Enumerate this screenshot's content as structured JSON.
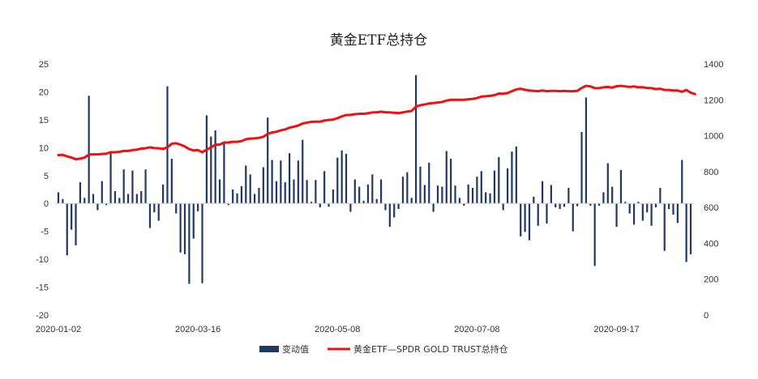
{
  "chart_data": {
    "type": "bar+line",
    "title": "黄金ETF总持仓",
    "x_tick_labels": [
      "2020-01-02",
      "2020-03-16",
      "2020-05-08",
      "2020-07-08",
      "2020-09-17"
    ],
    "y_left": {
      "min": -20,
      "max": 25,
      "ticks": [
        -20,
        -15,
        -10,
        -5,
        0,
        5,
        10,
        15,
        20,
        25
      ]
    },
    "y_right": {
      "min": 0,
      "max": 1400,
      "ticks": [
        0,
        200,
        400,
        600,
        800,
        1000,
        1200,
        1400
      ]
    },
    "grid": false,
    "legend_position": "bottom",
    "series": [
      {
        "name": "变动值",
        "type": "bar",
        "axis": "left",
        "color": "#1f3864",
        "values": [
          2.0,
          0.8,
          -9.3,
          -4.7,
          -7.5,
          3.8,
          1.0,
          19.3,
          1.7,
          -1.2,
          4.0,
          -0.3,
          9.4,
          2.2,
          1.0,
          6.1,
          1.7,
          5.9,
          1.7,
          2.2,
          6.1,
          -4.4,
          -1.6,
          -3.1,
          3.4,
          21.0,
          8.0,
          -1.8,
          -8.8,
          -9.1,
          -14.4,
          -6.3,
          -1.4,
          -14.3,
          15.8,
          12.0,
          13.1,
          4.3,
          10.7,
          -0.3,
          2.5,
          1.8,
          3.1,
          6.8,
          5.2,
          1.7,
          2.8,
          6.5,
          15.4,
          7.8,
          4.0,
          7.7,
          3.8,
          9.0,
          4.3,
          7.7,
          11.4,
          4.2,
          0.3,
          4.2,
          -0.7,
          5.8,
          -0.6,
          2.5,
          8.2,
          9.5,
          8.9,
          -1.5,
          4.3,
          3.0,
          0.5,
          3.4,
          5.2,
          0.8,
          4.3,
          -1.2,
          -4.2,
          -2.5,
          -1.0,
          4.8,
          5.6,
          1.0,
          23.0,
          6.6,
          3.3,
          7.3,
          -1.5,
          3.2,
          3.0,
          9.4,
          8.0,
          3.2,
          1.0,
          -0.4,
          3.4,
          2.8,
          4.8,
          5.8,
          2.0,
          1.8,
          5.9,
          8.3,
          -1.2,
          6.3,
          9.3,
          10.2,
          -5.9,
          -5.1,
          -6.6,
          1.2,
          -4.0,
          4.0,
          -3.6,
          3.3,
          -0.7,
          -1.0,
          -0.6,
          2.8,
          -5.0,
          -0.5,
          12.8,
          19.0,
          -0.4,
          -11.2,
          -0.4,
          2.0,
          7.2,
          3.0,
          -4.2,
          6.0,
          0.3,
          -1.8,
          -3.8,
          0.3,
          -3.1,
          -1.6,
          -4.0,
          -0.7,
          2.8,
          -8.5,
          -1.0,
          -2.0,
          -3.5,
          7.8,
          -10.5,
          -9.1
        ]
      },
      {
        "name": "黄金ETF—SPDR GOLD TRUST总持仓",
        "type": "line",
        "axis": "right",
        "color": "#ee1111",
        "values": [
          892,
          893,
          885,
          878,
          869,
          872,
          878,
          895,
          896,
          896,
          898,
          900,
          908,
          908,
          910,
          915,
          915,
          920,
          922,
          928,
          930,
          935,
          931,
          930,
          926,
          935,
          955,
          958,
          950,
          940,
          925,
          918,
          920,
          908,
          922,
          935,
          950,
          950,
          962,
          962,
          966,
          966,
          970,
          980,
          984,
          985,
          988,
          994,
          1010,
          1018,
          1022,
          1030,
          1035,
          1045,
          1050,
          1057,
          1068,
          1073,
          1077,
          1078,
          1078,
          1085,
          1088,
          1090,
          1098,
          1108,
          1115,
          1116,
          1120,
          1122,
          1122,
          1125,
          1130,
          1130,
          1134,
          1130,
          1130,
          1128,
          1126,
          1130,
          1135,
          1138,
          1162,
          1170,
          1174,
          1180,
          1182,
          1185,
          1188,
          1196,
          1200,
          1200,
          1200,
          1200,
          1203,
          1205,
          1210,
          1218,
          1220,
          1222,
          1226,
          1235,
          1234,
          1238,
          1248,
          1258,
          1262,
          1256,
          1252,
          1250,
          1248,
          1252,
          1248,
          1250,
          1250,
          1248,
          1250,
          1248,
          1248,
          1250,
          1266,
          1278,
          1275,
          1265,
          1265,
          1270,
          1272,
          1268,
          1276,
          1278,
          1275,
          1272,
          1275,
          1270,
          1270,
          1266,
          1265,
          1260,
          1262,
          1255,
          1255,
          1252,
          1252,
          1245,
          1255,
          1240,
          1232
        ]
      }
    ]
  }
}
